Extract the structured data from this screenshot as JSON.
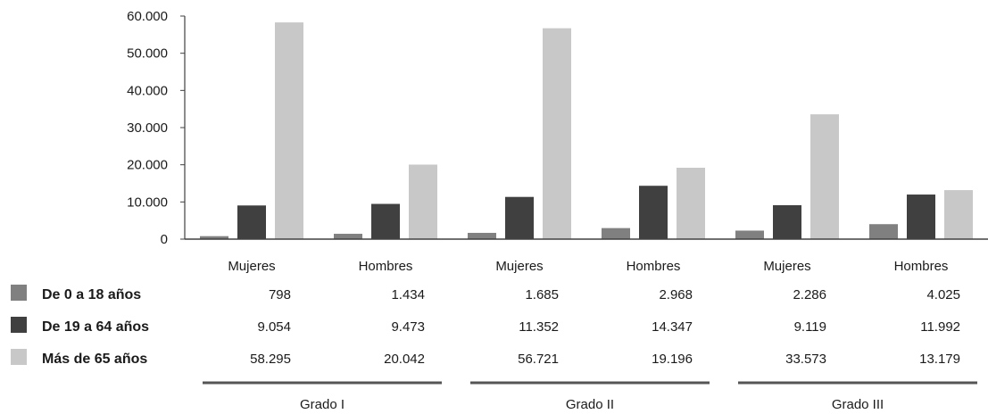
{
  "chart_data": {
    "type": "bar",
    "categories": [
      "Mujeres",
      "Hombres",
      "Mujeres",
      "Hombres",
      "Mujeres",
      "Hombres"
    ],
    "groups": [
      {
        "label": "Grado I",
        "span": [
          0,
          1
        ]
      },
      {
        "label": "Grado II",
        "span": [
          2,
          3
        ]
      },
      {
        "label": "Grado III",
        "span": [
          4,
          5
        ]
      }
    ],
    "series": [
      {
        "name": "De 0 a 18 años",
        "color": "#808080",
        "values": [
          798,
          1434,
          1685,
          2968,
          2286,
          4025
        ],
        "labels": [
          "798",
          "1.434",
          "1.685",
          "2.968",
          "2.286",
          "4.025"
        ]
      },
      {
        "name": "De 19 a 64 años",
        "color": "#404040",
        "values": [
          9054,
          9473,
          11352,
          14347,
          9119,
          11992
        ],
        "labels": [
          "9.054",
          "9.473",
          "11.352",
          "14.347",
          "9.119",
          "11.992"
        ]
      },
      {
        "name": "Más de 65 años",
        "color": "#c8c8c8",
        "values": [
          58295,
          20042,
          56721,
          19196,
          33573,
          13179
        ],
        "labels": [
          "58.295",
          "20.042",
          "56.721",
          "19.196",
          "33.573",
          "13.179"
        ]
      }
    ],
    "ylim": [
      0,
      60000
    ],
    "yticks": [
      0,
      10000,
      20000,
      30000,
      40000,
      50000,
      60000
    ],
    "ytick_labels": [
      "0",
      "10.000",
      "20.000",
      "30.000",
      "40.000",
      "50.000",
      "60.000"
    ],
    "legend_placement": "left, as data-table row headers",
    "grid": false
  }
}
